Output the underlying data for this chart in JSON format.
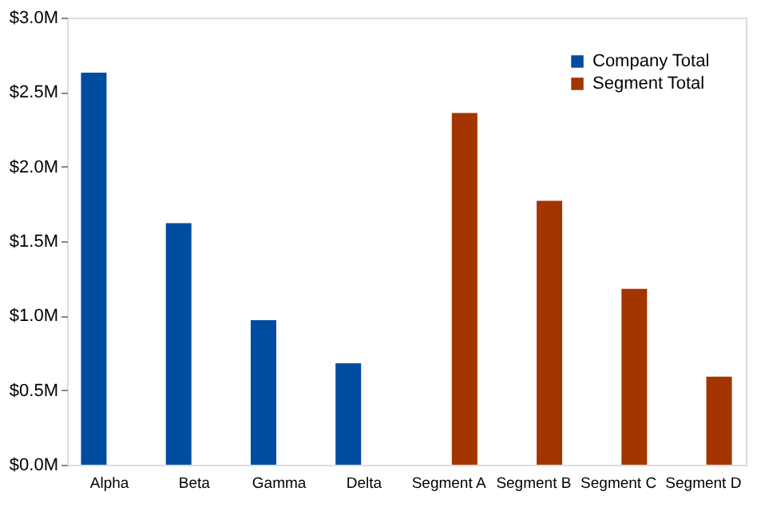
{
  "chart_data": {
    "type": "bar",
    "categories": [
      "Alpha",
      "Beta",
      "Gamma",
      "Delta",
      "Segment A",
      "Segment B",
      "Segment C",
      "Segment D"
    ],
    "series": [
      {
        "name": "Company Total",
        "color": "#004c9f",
        "values": [
          2.63,
          1.62,
          0.97,
          0.68,
          null,
          null,
          null,
          null
        ]
      },
      {
        "name": "Segment Total",
        "color": "#a33500",
        "values": [
          null,
          null,
          null,
          null,
          2.36,
          1.77,
          1.18,
          0.59
        ]
      }
    ],
    "ylim": [
      0,
      3.0
    ],
    "yticks": [
      {
        "value": 0,
        "label": "$0.0M"
      },
      {
        "value": 0.5,
        "label": "$0.5M"
      },
      {
        "value": 1.0,
        "label": "$1.0M"
      },
      {
        "value": 1.5,
        "label": "$1.5M"
      },
      {
        "value": 2.0,
        "label": "$2.0M"
      },
      {
        "value": 2.5,
        "label": "$2.5M"
      },
      {
        "value": 3.0,
        "label": "$3.0M"
      }
    ],
    "grid": false,
    "legend": "top right"
  }
}
